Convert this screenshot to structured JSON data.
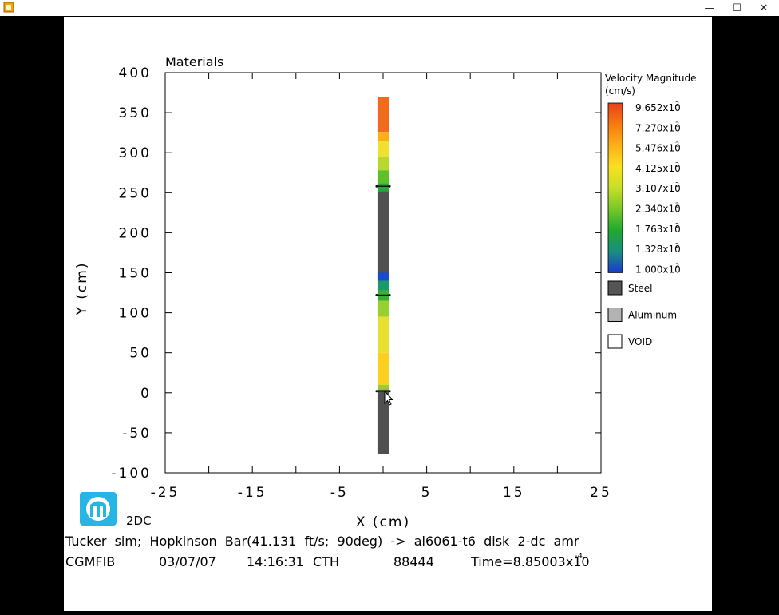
{
  "window": {
    "minimize_glyph": "—",
    "maximize_glyph": "☐",
    "close_glyph": "✕",
    "icon": "app-icon"
  },
  "plot": {
    "title": "Materials",
    "xlabel": "X (cm)",
    "ylabel": "Y (cm)",
    "x_ticks": [
      "-25",
      "-15",
      "-5",
      "5",
      "15",
      "25"
    ],
    "x_tick_values": [
      -25,
      -15,
      -5,
      5,
      15,
      25
    ],
    "y_ticks": [
      "400",
      "350",
      "300",
      "250",
      "200",
      "150",
      "100",
      "50",
      "0",
      "-50",
      "-100"
    ],
    "y_tick_values": [
      400,
      350,
      300,
      250,
      200,
      150,
      100,
      50,
      0,
      -50,
      -100
    ],
    "xlim": [
      -25,
      25
    ],
    "ylim": [
      -100,
      400
    ]
  },
  "legend": {
    "title_line1": "Velocity Magnitude",
    "title_line2": "(cm/s)",
    "velocity_levels": [
      {
        "mantissa": "9.652x10",
        "exp": "2",
        "color": "#e8401c"
      },
      {
        "mantissa": "7.270x10",
        "exp": "2",
        "color": "#f87a10"
      },
      {
        "mantissa": "5.476x10",
        "exp": "2",
        "color": "#fbb018"
      },
      {
        "mantissa": "4.125x10",
        "exp": "2",
        "color": "#f8e020"
      },
      {
        "mantissa": "3.107x10",
        "exp": "2",
        "color": "#c8df28"
      },
      {
        "mantissa": "2.340x10",
        "exp": "2",
        "color": "#78c828"
      },
      {
        "mantissa": "1.763x10",
        "exp": "2",
        "color": "#20a830"
      },
      {
        "mantissa": "1.328x10",
        "exp": "2",
        "color": "#1a8e80"
      },
      {
        "mantissa": "1.000x10",
        "exp": "2",
        "color": "#1a3ad0"
      }
    ],
    "materials": [
      {
        "label": "Steel",
        "color": "#555555"
      },
      {
        "label": "Aluminum",
        "color": "#b3b3b3"
      },
      {
        "label": "VOID",
        "color": "#ffffff"
      }
    ]
  },
  "bar_segments": [
    {
      "y_from": 370,
      "y_to": 326,
      "color": "#f26a1c"
    },
    {
      "y_from": 326,
      "y_to": 315,
      "color": "#fbb018"
    },
    {
      "y_from": 315,
      "y_to": 295,
      "color": "#f0e030"
    },
    {
      "y_from": 295,
      "y_to": 278,
      "color": "#b8d830"
    },
    {
      "y_from": 278,
      "y_to": 262,
      "color": "#60c028"
    },
    {
      "y_from": 262,
      "y_to": 252,
      "color": "#28a838"
    },
    {
      "y_from": 252,
      "y_to": 150,
      "color": "#505050"
    },
    {
      "y_from": 150,
      "y_to": 140,
      "color": "#1a4ad0"
    },
    {
      "y_from": 140,
      "y_to": 128,
      "color": "#1a9a68"
    },
    {
      "y_from": 128,
      "y_to": 115,
      "color": "#38b030"
    },
    {
      "y_from": 115,
      "y_to": 95,
      "color": "#98d030"
    },
    {
      "y_from": 95,
      "y_to": 50,
      "color": "#e8e030"
    },
    {
      "y_from": 50,
      "y_to": 10,
      "color": "#fbd020"
    },
    {
      "y_from": 10,
      "y_to": 4,
      "color": "#9ccc30"
    },
    {
      "y_from": 4,
      "y_to": -77,
      "color": "#505050"
    }
  ],
  "footer": {
    "logo_label": "2DC",
    "line1": "Tucker  sim;  Hopkinson  Bar(41.131  ft/s;  90deg)  ->  al6061-t6  disk  2-dc  amr",
    "line2_id": "CGMFIB",
    "line2_date": "03/07/07",
    "line2_time": "14:16:31",
    "line2_code": "CTH",
    "line2_cycle": "88444",
    "line2_time_label": "Time=8.85003x10",
    "line2_time_exp": "-4"
  }
}
